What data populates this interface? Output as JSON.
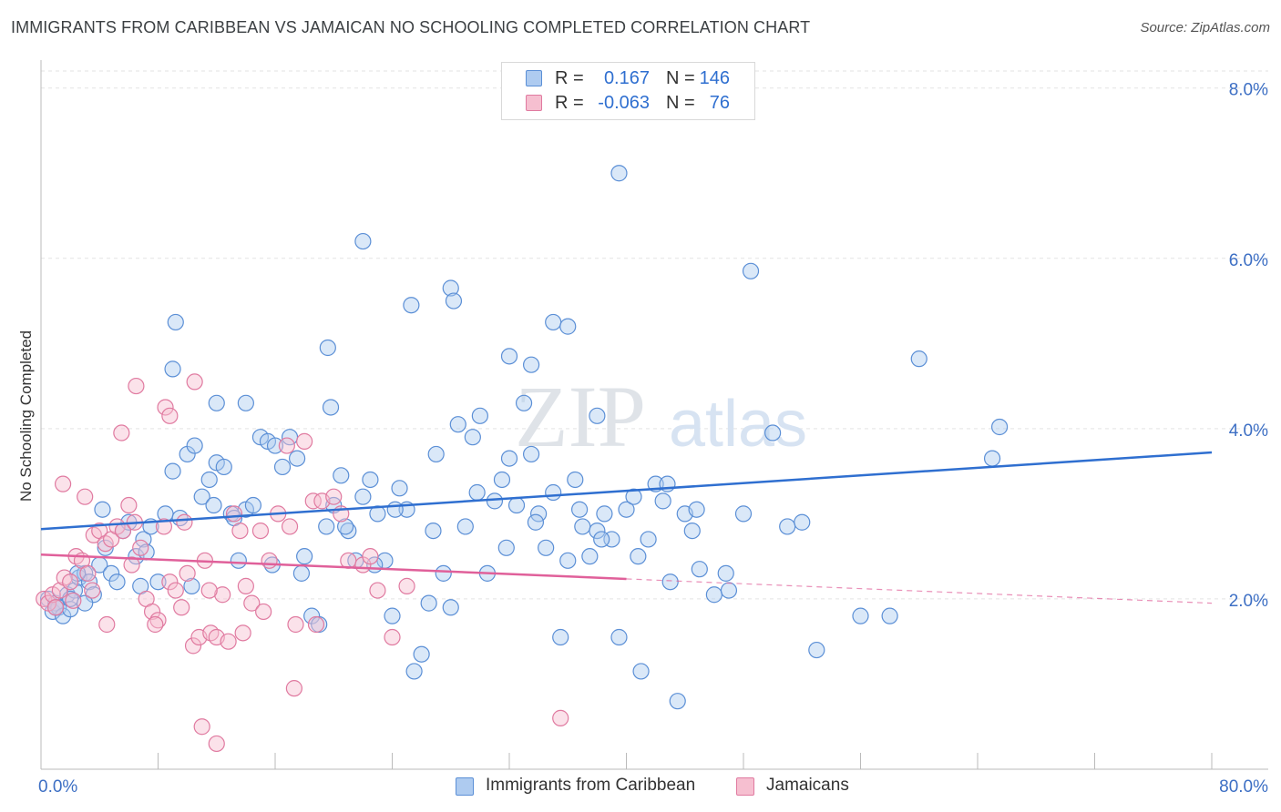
{
  "title": "IMMIGRANTS FROM CARIBBEAN VS JAMAICAN NO SCHOOLING COMPLETED CORRELATION CHART",
  "source": "Source: ZipAtlas.com",
  "watermark": {
    "zip": "ZIP",
    "atlas": "atlas"
  },
  "legend": {
    "rows": [
      {
        "r_label": "R =",
        "r_value": "0.167",
        "n_label": "N =",
        "n_value": "146"
      },
      {
        "r_label": "R =",
        "r_value": "-0.063",
        "n_label": "N =",
        "n_value": "76"
      }
    ]
  },
  "colors": {
    "blue_fill": "#aecbf0",
    "blue_stroke": "#5b8fd6",
    "blue_line": "#2f6fd0",
    "pink_fill": "#f6bfd0",
    "pink_stroke": "#e07aa0",
    "pink_line": "#e0609a",
    "axis_label": "#3d6fc4",
    "grid": "#e3e3e3"
  },
  "chart_data": {
    "type": "scatter",
    "title": "IMMIGRANTS FROM CARIBBEAN VS JAMAICAN NO SCHOOLING COMPLETED CORRELATION CHART",
    "xlabel": "",
    "ylabel": "No Schooling Completed",
    "xlim": [
      0,
      80
    ],
    "ylim": [
      0,
      8.2
    ],
    "x_tick_labels": [
      "0.0%",
      "80.0%"
    ],
    "y_ticks": [
      2,
      4,
      6,
      8
    ],
    "y_tick_labels": [
      "2.0%",
      "4.0%",
      "6.0%",
      "8.0%"
    ],
    "grid": true,
    "legend_position": "top-center",
    "series": [
      {
        "name": "Immigrants from Caribbean",
        "r": 0.167,
        "n": 146,
        "trend": {
          "x": [
            0,
            80
          ],
          "y": [
            2.82,
            3.72
          ],
          "dashed_from": null
        },
        "points": [
          [
            0.5,
            2.0
          ],
          [
            0.8,
            1.85
          ],
          [
            1.0,
            1.95
          ],
          [
            1.2,
            1.9
          ],
          [
            1.5,
            1.8
          ],
          [
            1.8,
            2.05
          ],
          [
            2.0,
            1.88
          ],
          [
            2.3,
            2.1
          ],
          [
            2.6,
            2.25
          ],
          [
            3.0,
            2.3
          ],
          [
            3.3,
            2.2
          ],
          [
            3.6,
            2.05
          ],
          [
            4.0,
            2.4
          ],
          [
            4.4,
            2.6
          ],
          [
            4.8,
            2.3
          ],
          [
            5.2,
            2.2
          ],
          [
            5.6,
            2.8
          ],
          [
            6.0,
            2.9
          ],
          [
            6.5,
            2.5
          ],
          [
            7.0,
            2.7
          ],
          [
            7.5,
            2.85
          ],
          [
            8.0,
            2.2
          ],
          [
            8.5,
            3.0
          ],
          [
            9.0,
            3.5
          ],
          [
            9.5,
            2.95
          ],
          [
            10.0,
            3.7
          ],
          [
            10.5,
            3.8
          ],
          [
            11.0,
            3.2
          ],
          [
            11.5,
            3.4
          ],
          [
            12.0,
            3.6
          ],
          [
            12.5,
            3.55
          ],
          [
            13.0,
            3.0
          ],
          [
            13.5,
            2.45
          ],
          [
            14.0,
            3.05
          ],
          [
            14.5,
            3.1
          ],
          [
            15.0,
            3.9
          ],
          [
            15.5,
            3.85
          ],
          [
            16.0,
            3.8
          ],
          [
            16.5,
            3.55
          ],
          [
            17.0,
            3.9
          ],
          [
            17.5,
            3.65
          ],
          [
            18.0,
            2.5
          ],
          [
            18.5,
            1.8
          ],
          [
            19.0,
            1.7
          ],
          [
            19.5,
            2.85
          ],
          [
            20.0,
            3.1
          ],
          [
            20.5,
            3.45
          ],
          [
            21.0,
            2.8
          ],
          [
            21.5,
            2.45
          ],
          [
            22.0,
            3.2
          ],
          [
            22.5,
            3.4
          ],
          [
            23.0,
            3.0
          ],
          [
            23.5,
            2.45
          ],
          [
            24.0,
            1.8
          ],
          [
            24.5,
            3.3
          ],
          [
            25.0,
            3.05
          ],
          [
            25.5,
            1.15
          ],
          [
            26.0,
            1.35
          ],
          [
            26.5,
            1.95
          ],
          [
            27.0,
            3.7
          ],
          [
            27.5,
            2.3
          ],
          [
            28.0,
            1.9
          ],
          [
            28.5,
            4.05
          ],
          [
            29.0,
            2.85
          ],
          [
            29.5,
            3.9
          ],
          [
            30.0,
            4.15
          ],
          [
            30.5,
            2.3
          ],
          [
            31.0,
            3.15
          ],
          [
            31.5,
            3.4
          ],
          [
            32.0,
            3.65
          ],
          [
            32.5,
            3.1
          ],
          [
            33.0,
            4.3
          ],
          [
            33.5,
            3.7
          ],
          [
            34.0,
            3.0
          ],
          [
            34.5,
            2.6
          ],
          [
            35.0,
            3.25
          ],
          [
            35.5,
            1.55
          ],
          [
            36.0,
            2.45
          ],
          [
            36.5,
            3.4
          ],
          [
            37.0,
            2.85
          ],
          [
            37.5,
            2.5
          ],
          [
            38.0,
            2.8
          ],
          [
            38.5,
            3.0
          ],
          [
            39.0,
            2.7
          ],
          [
            39.5,
            1.55
          ],
          [
            40.0,
            3.05
          ],
          [
            40.5,
            3.2
          ],
          [
            41.0,
            1.15
          ],
          [
            41.5,
            2.7
          ],
          [
            42.0,
            3.35
          ],
          [
            42.5,
            3.15
          ],
          [
            43.0,
            2.2
          ],
          [
            43.5,
            0.8
          ],
          [
            44.0,
            3.0
          ],
          [
            44.5,
            2.8
          ],
          [
            45.0,
            2.35
          ],
          [
            46.0,
            2.05
          ],
          [
            47.0,
            2.1
          ],
          [
            48.0,
            3.0
          ],
          [
            50.0,
            3.95
          ],
          [
            52.0,
            2.9
          ],
          [
            53.0,
            1.4
          ],
          [
            56.0,
            1.8
          ],
          [
            58.0,
            1.8
          ],
          [
            60.0,
            4.82
          ],
          [
            65.0,
            3.65
          ],
          [
            65.5,
            4.02
          ],
          [
            1.0,
            1.9
          ],
          [
            2.0,
            2.0
          ],
          [
            3.0,
            1.95
          ],
          [
            9.0,
            4.7
          ],
          [
            9.2,
            5.25
          ],
          [
            12.0,
            4.3
          ],
          [
            14.0,
            4.3
          ],
          [
            19.6,
            4.95
          ],
          [
            19.8,
            4.25
          ],
          [
            22.0,
            6.2
          ],
          [
            25.3,
            5.45
          ],
          [
            28.0,
            5.65
          ],
          [
            28.2,
            5.5
          ],
          [
            32.0,
            4.85
          ],
          [
            33.5,
            4.75
          ],
          [
            35.0,
            5.25
          ],
          [
            36.0,
            5.2
          ],
          [
            38.0,
            4.15
          ],
          [
            39.5,
            7.0
          ],
          [
            48.5,
            5.85
          ],
          [
            2.5,
            2.3
          ],
          [
            4.2,
            3.05
          ],
          [
            6.8,
            2.15
          ],
          [
            7.2,
            2.55
          ],
          [
            10.3,
            2.15
          ],
          [
            11.8,
            3.1
          ],
          [
            13.2,
            2.95
          ],
          [
            15.8,
            2.4
          ],
          [
            17.8,
            2.3
          ],
          [
            20.8,
            2.85
          ],
          [
            22.8,
            2.4
          ],
          [
            24.2,
            3.05
          ],
          [
            26.8,
            2.8
          ],
          [
            29.8,
            3.25
          ],
          [
            31.8,
            2.6
          ],
          [
            33.8,
            2.9
          ],
          [
            36.8,
            3.05
          ],
          [
            38.3,
            2.7
          ],
          [
            40.8,
            2.5
          ],
          [
            42.8,
            3.35
          ],
          [
            44.8,
            3.05
          ],
          [
            46.8,
            2.3
          ],
          [
            51.0,
            2.85
          ]
        ]
      },
      {
        "name": "Jamaicans",
        "r": -0.063,
        "n": 76,
        "trend": {
          "x": [
            0,
            80
          ],
          "y": [
            2.52,
            1.95
          ],
          "dashed_from": 40
        },
        "points": [
          [
            0.2,
            2.0
          ],
          [
            0.5,
            1.95
          ],
          [
            0.8,
            2.05
          ],
          [
            1.0,
            1.9
          ],
          [
            1.3,
            2.1
          ],
          [
            1.6,
            2.25
          ],
          [
            2.0,
            2.2
          ],
          [
            2.4,
            2.5
          ],
          [
            2.8,
            2.45
          ],
          [
            3.2,
            2.3
          ],
          [
            3.6,
            2.75
          ],
          [
            4.0,
            2.8
          ],
          [
            4.4,
            2.65
          ],
          [
            4.8,
            2.7
          ],
          [
            5.2,
            2.85
          ],
          [
            5.6,
            2.8
          ],
          [
            6.0,
            3.1
          ],
          [
            6.4,
            2.9
          ],
          [
            6.8,
            2.6
          ],
          [
            7.2,
            2.0
          ],
          [
            7.6,
            1.85
          ],
          [
            8.0,
            1.75
          ],
          [
            8.4,
            2.85
          ],
          [
            8.8,
            2.2
          ],
          [
            9.2,
            2.1
          ],
          [
            9.6,
            1.9
          ],
          [
            10.0,
            2.3
          ],
          [
            10.4,
            1.45
          ],
          [
            10.8,
            1.55
          ],
          [
            11.2,
            2.45
          ],
          [
            11.6,
            1.6
          ],
          [
            12.0,
            1.55
          ],
          [
            12.4,
            2.05
          ],
          [
            12.8,
            1.5
          ],
          [
            13.2,
            3.0
          ],
          [
            13.6,
            2.8
          ],
          [
            14.0,
            2.15
          ],
          [
            14.4,
            1.95
          ],
          [
            15.0,
            2.8
          ],
          [
            15.6,
            2.45
          ],
          [
            16.2,
            3.0
          ],
          [
            16.8,
            3.8
          ],
          [
            17.4,
            1.7
          ],
          [
            18.0,
            3.85
          ],
          [
            18.6,
            3.15
          ],
          [
            19.2,
            3.15
          ],
          [
            20.0,
            3.2
          ],
          [
            21.0,
            2.45
          ],
          [
            22.0,
            2.4
          ],
          [
            23.0,
            2.1
          ],
          [
            24.0,
            1.55
          ],
          [
            25.0,
            2.15
          ],
          [
            1.5,
            3.35
          ],
          [
            3.0,
            3.2
          ],
          [
            5.5,
            3.95
          ],
          [
            6.5,
            4.5
          ],
          [
            8.5,
            4.25
          ],
          [
            8.8,
            4.15
          ],
          [
            10.5,
            4.55
          ],
          [
            11.0,
            0.5
          ],
          [
            12.0,
            0.3
          ],
          [
            17.3,
            0.95
          ],
          [
            35.5,
            0.6
          ],
          [
            2.2,
            1.98
          ],
          [
            3.5,
            2.1
          ],
          [
            4.5,
            1.7
          ],
          [
            6.2,
            2.4
          ],
          [
            7.8,
            1.7
          ],
          [
            9.8,
            2.9
          ],
          [
            11.5,
            2.1
          ],
          [
            13.8,
            1.6
          ],
          [
            15.2,
            1.85
          ],
          [
            17.0,
            2.85
          ],
          [
            18.8,
            1.7
          ],
          [
            20.5,
            3.0
          ],
          [
            22.5,
            2.5
          ]
        ]
      }
    ]
  },
  "bottom_legend": [
    {
      "label": "Immigrants from Caribbean"
    },
    {
      "label": "Jamaicans"
    }
  ]
}
